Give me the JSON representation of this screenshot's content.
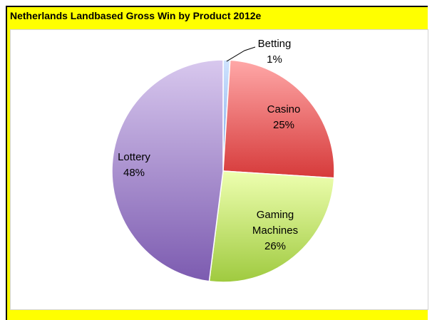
{
  "chart_data": {
    "type": "pie",
    "title": "Netherlands Landbased Gross Win by Product 2012e",
    "categories": [
      "Betting",
      "Casino",
      "Gaming Machines",
      "Lottery"
    ],
    "values": [
      1,
      25,
      26,
      48
    ],
    "value_labels": [
      "1%",
      "25%",
      "26%",
      "48%"
    ],
    "start_angle_deg": 0,
    "direction": "clockwise",
    "legend": "none",
    "colors": {
      "Betting": [
        "#cfe3ff",
        "#7fa8e6"
      ],
      "Casino": [
        "#ffa8a8",
        "#d63a3a"
      ],
      "Gaming Machines": [
        "#eeffb0",
        "#9fca3f"
      ],
      "Lottery": [
        "#d8c8ee",
        "#7c5bb0"
      ]
    }
  }
}
